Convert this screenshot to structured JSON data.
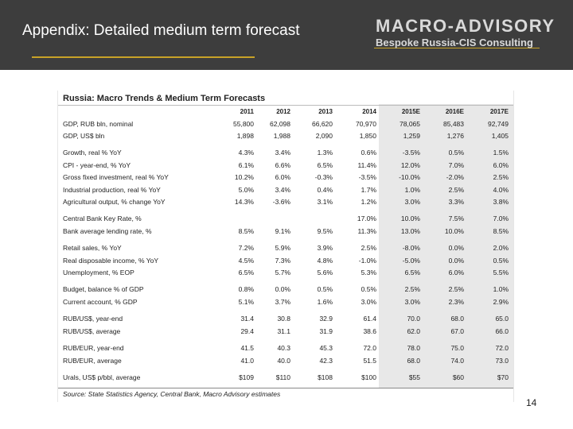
{
  "header": {
    "title": "Appendix: Detailed medium term forecast",
    "logo_main": "MACRO-ADVISORY",
    "logo_sub": "Bespoke Russia-CIS Consulting",
    "accent_color": "#c9a227",
    "background_color": "#3d3d3d"
  },
  "table": {
    "title": "Russia: Macro Trends & Medium Term Forecasts",
    "columns": [
      "2011",
      "2012",
      "2013",
      "2014",
      "2015E",
      "2016E",
      "2017E"
    ],
    "rows": [
      {
        "label": "GDP, RUB bln, nominal",
        "values": [
          "55,800",
          "62,098",
          "66,620",
          "70,970",
          "78,065",
          "85,483",
          "92,749"
        ]
      },
      {
        "label": "GDP, US$ bln",
        "values": [
          "1,898",
          "1,988",
          "2,090",
          "1,850",
          "1,259",
          "1,276",
          "1,405"
        ]
      },
      {
        "label": "Growth, real % YoY",
        "values": [
          "4.3%",
          "3.4%",
          "1.3%",
          "0.6%",
          "-3.5%",
          "0.5%",
          "1.5%"
        ]
      },
      {
        "label": "CPI - year-end, % YoY",
        "values": [
          "6.1%",
          "6.6%",
          "6.5%",
          "11.4%",
          "12.0%",
          "7.0%",
          "6.0%"
        ]
      },
      {
        "label": "Gross fixed investment, real % YoY",
        "values": [
          "10.2%",
          "6.0%",
          "-0.3%",
          "-3.5%",
          "-10.0%",
          "-2.0%",
          "2.5%"
        ]
      },
      {
        "label": "Industrial production, real % YoY",
        "values": [
          "5.0%",
          "3.4%",
          "0.4%",
          "1.7%",
          "1.0%",
          "2.5%",
          "4.0%"
        ]
      },
      {
        "label": "Agricultural output, % change YoY",
        "values": [
          "14.3%",
          "-3.6%",
          "3.1%",
          "1.2%",
          "3.0%",
          "3.3%",
          "3.8%"
        ]
      },
      {
        "label": "Central Bank Key Rate, %",
        "values": [
          "",
          "",
          "",
          "17.0%",
          "10.0%",
          "7.5%",
          "7.0%"
        ]
      },
      {
        "label": "Bank average lending rate, %",
        "values": [
          "8.5%",
          "9.1%",
          "9.5%",
          "11.3%",
          "13.0%",
          "10.0%",
          "8.5%"
        ]
      },
      {
        "label": "Retail sales, % YoY",
        "values": [
          "7.2%",
          "5.9%",
          "3.9%",
          "2.5%",
          "-8.0%",
          "0.0%",
          "2.0%"
        ]
      },
      {
        "label": "Real disposable income, % YoY",
        "values": [
          "4.5%",
          "7.3%",
          "4.8%",
          "-1.0%",
          "-5.0%",
          "0.0%",
          "0.5%"
        ]
      },
      {
        "label": "Unemployment, % EOP",
        "values": [
          "6.5%",
          "5.7%",
          "5.6%",
          "5.3%",
          "6.5%",
          "6.0%",
          "5.5%"
        ]
      },
      {
        "label": "Budget, balance % of GDP",
        "values": [
          "0.8%",
          "0.0%",
          "0.5%",
          "0.5%",
          "2.5%",
          "2.5%",
          "1.0%"
        ]
      },
      {
        "label": "Current account, % GDP",
        "values": [
          "5.1%",
          "3.7%",
          "1.6%",
          "3.0%",
          "3.0%",
          "2.3%",
          "2.9%"
        ]
      },
      {
        "label": "RUB/US$, year-end",
        "values": [
          "31.4",
          "30.8",
          "32.9",
          "61.4",
          "70.0",
          "68.0",
          "65.0"
        ]
      },
      {
        "label": "RUB/US$, average",
        "values": [
          "29.4",
          "31.1",
          "31.9",
          "38.6",
          "62.0",
          "67.0",
          "66.0"
        ]
      },
      {
        "label": "RUB/EUR, year-end",
        "values": [
          "41.5",
          "40.3",
          "45.3",
          "72.0",
          "78.0",
          "75.0",
          "72.0"
        ]
      },
      {
        "label": "RUB/EUR, average",
        "values": [
          "41.0",
          "40.0",
          "42.3",
          "51.5",
          "68.0",
          "74.0",
          "73.0"
        ]
      },
      {
        "label": "Urals, US$ p/bbl, average",
        "values": [
          "$109",
          "$110",
          "$108",
          "$100",
          "$55",
          "$60",
          "$70"
        ]
      }
    ],
    "source": "Source: State Statistics Agency, Central Bank, Macro Advisory estimates"
  },
  "page_number": "14"
}
